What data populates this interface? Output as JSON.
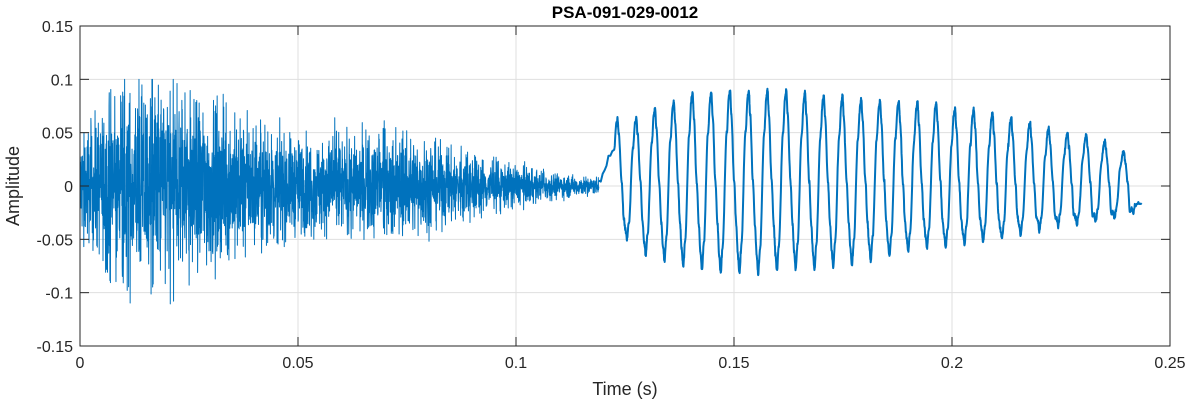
{
  "chart_data": {
    "type": "line",
    "title": "PSA-091-029-0012",
    "xlabel": "Time (s)",
    "ylabel": "Amplitude",
    "xlim": [
      0,
      0.25
    ],
    "ylim": [
      -0.15,
      0.15
    ],
    "grid": true,
    "x_ticks": [
      0,
      0.05,
      0.1,
      0.15,
      0.2,
      0.25
    ],
    "x_tick_labels": [
      "0",
      "0.05",
      "0.1",
      "0.15",
      "0.2",
      "0.25"
    ],
    "y_ticks": [
      -0.15,
      -0.1,
      -0.05,
      0,
      0.05,
      0.1,
      0.15
    ],
    "y_tick_labels": [
      "-0.15",
      "-0.1",
      "-0.05",
      "0",
      "0.05",
      "0.1",
      "0.15"
    ],
    "line_color": "#0072BD",
    "segments": [
      {
        "name": "noise",
        "x_start": 0.0,
        "x_end": 0.119,
        "envelope": [
          {
            "t": 0.0,
            "amp": 0.04
          },
          {
            "t": 0.008,
            "amp": 0.07
          },
          {
            "t": 0.017,
            "amp": 0.085
          },
          {
            "t": 0.025,
            "amp": 0.075
          },
          {
            "t": 0.035,
            "amp": 0.055
          },
          {
            "t": 0.045,
            "amp": 0.04
          },
          {
            "t": 0.055,
            "amp": 0.038
          },
          {
            "t": 0.065,
            "amp": 0.038
          },
          {
            "t": 0.075,
            "amp": 0.04
          },
          {
            "t": 0.085,
            "amp": 0.03
          },
          {
            "t": 0.095,
            "amp": 0.02
          },
          {
            "t": 0.105,
            "amp": 0.012
          },
          {
            "t": 0.119,
            "amp": 0.006
          }
        ],
        "peak_max": 0.1,
        "peak_min": -0.12
      },
      {
        "name": "periodic",
        "x_start": 0.119,
        "x_end": 0.2435,
        "peak_times": [
          0.1233,
          0.1276,
          0.1319,
          0.1362,
          0.1405,
          0.1448,
          0.1491,
          0.1534,
          0.1577,
          0.162,
          0.1663,
          0.1706,
          0.1749,
          0.1792,
          0.1835,
          0.1878,
          0.1921,
          0.1964,
          0.2007,
          0.205,
          0.2093,
          0.2136,
          0.2179,
          0.2222,
          0.2265,
          0.2308,
          0.2351,
          0.2394
        ],
        "peak_values": [
          0.063,
          0.064,
          0.073,
          0.08,
          0.087,
          0.088,
          0.09,
          0.09,
          0.09,
          0.09,
          0.088,
          0.085,
          0.084,
          0.082,
          0.08,
          0.08,
          0.079,
          0.078,
          0.073,
          0.072,
          0.068,
          0.064,
          0.06,
          0.054,
          0.05,
          0.048,
          0.042,
          0.032
        ],
        "trough_values": [
          -0.05,
          -0.065,
          -0.07,
          -0.075,
          -0.078,
          -0.082,
          -0.082,
          -0.083,
          -0.08,
          -0.078,
          -0.078,
          -0.076,
          -0.074,
          -0.07,
          -0.066,
          -0.062,
          -0.058,
          -0.058,
          -0.055,
          -0.052,
          -0.05,
          -0.046,
          -0.042,
          -0.038,
          -0.036,
          -0.033,
          -0.03,
          -0.026
        ],
        "end_value": -0.016
      }
    ]
  }
}
